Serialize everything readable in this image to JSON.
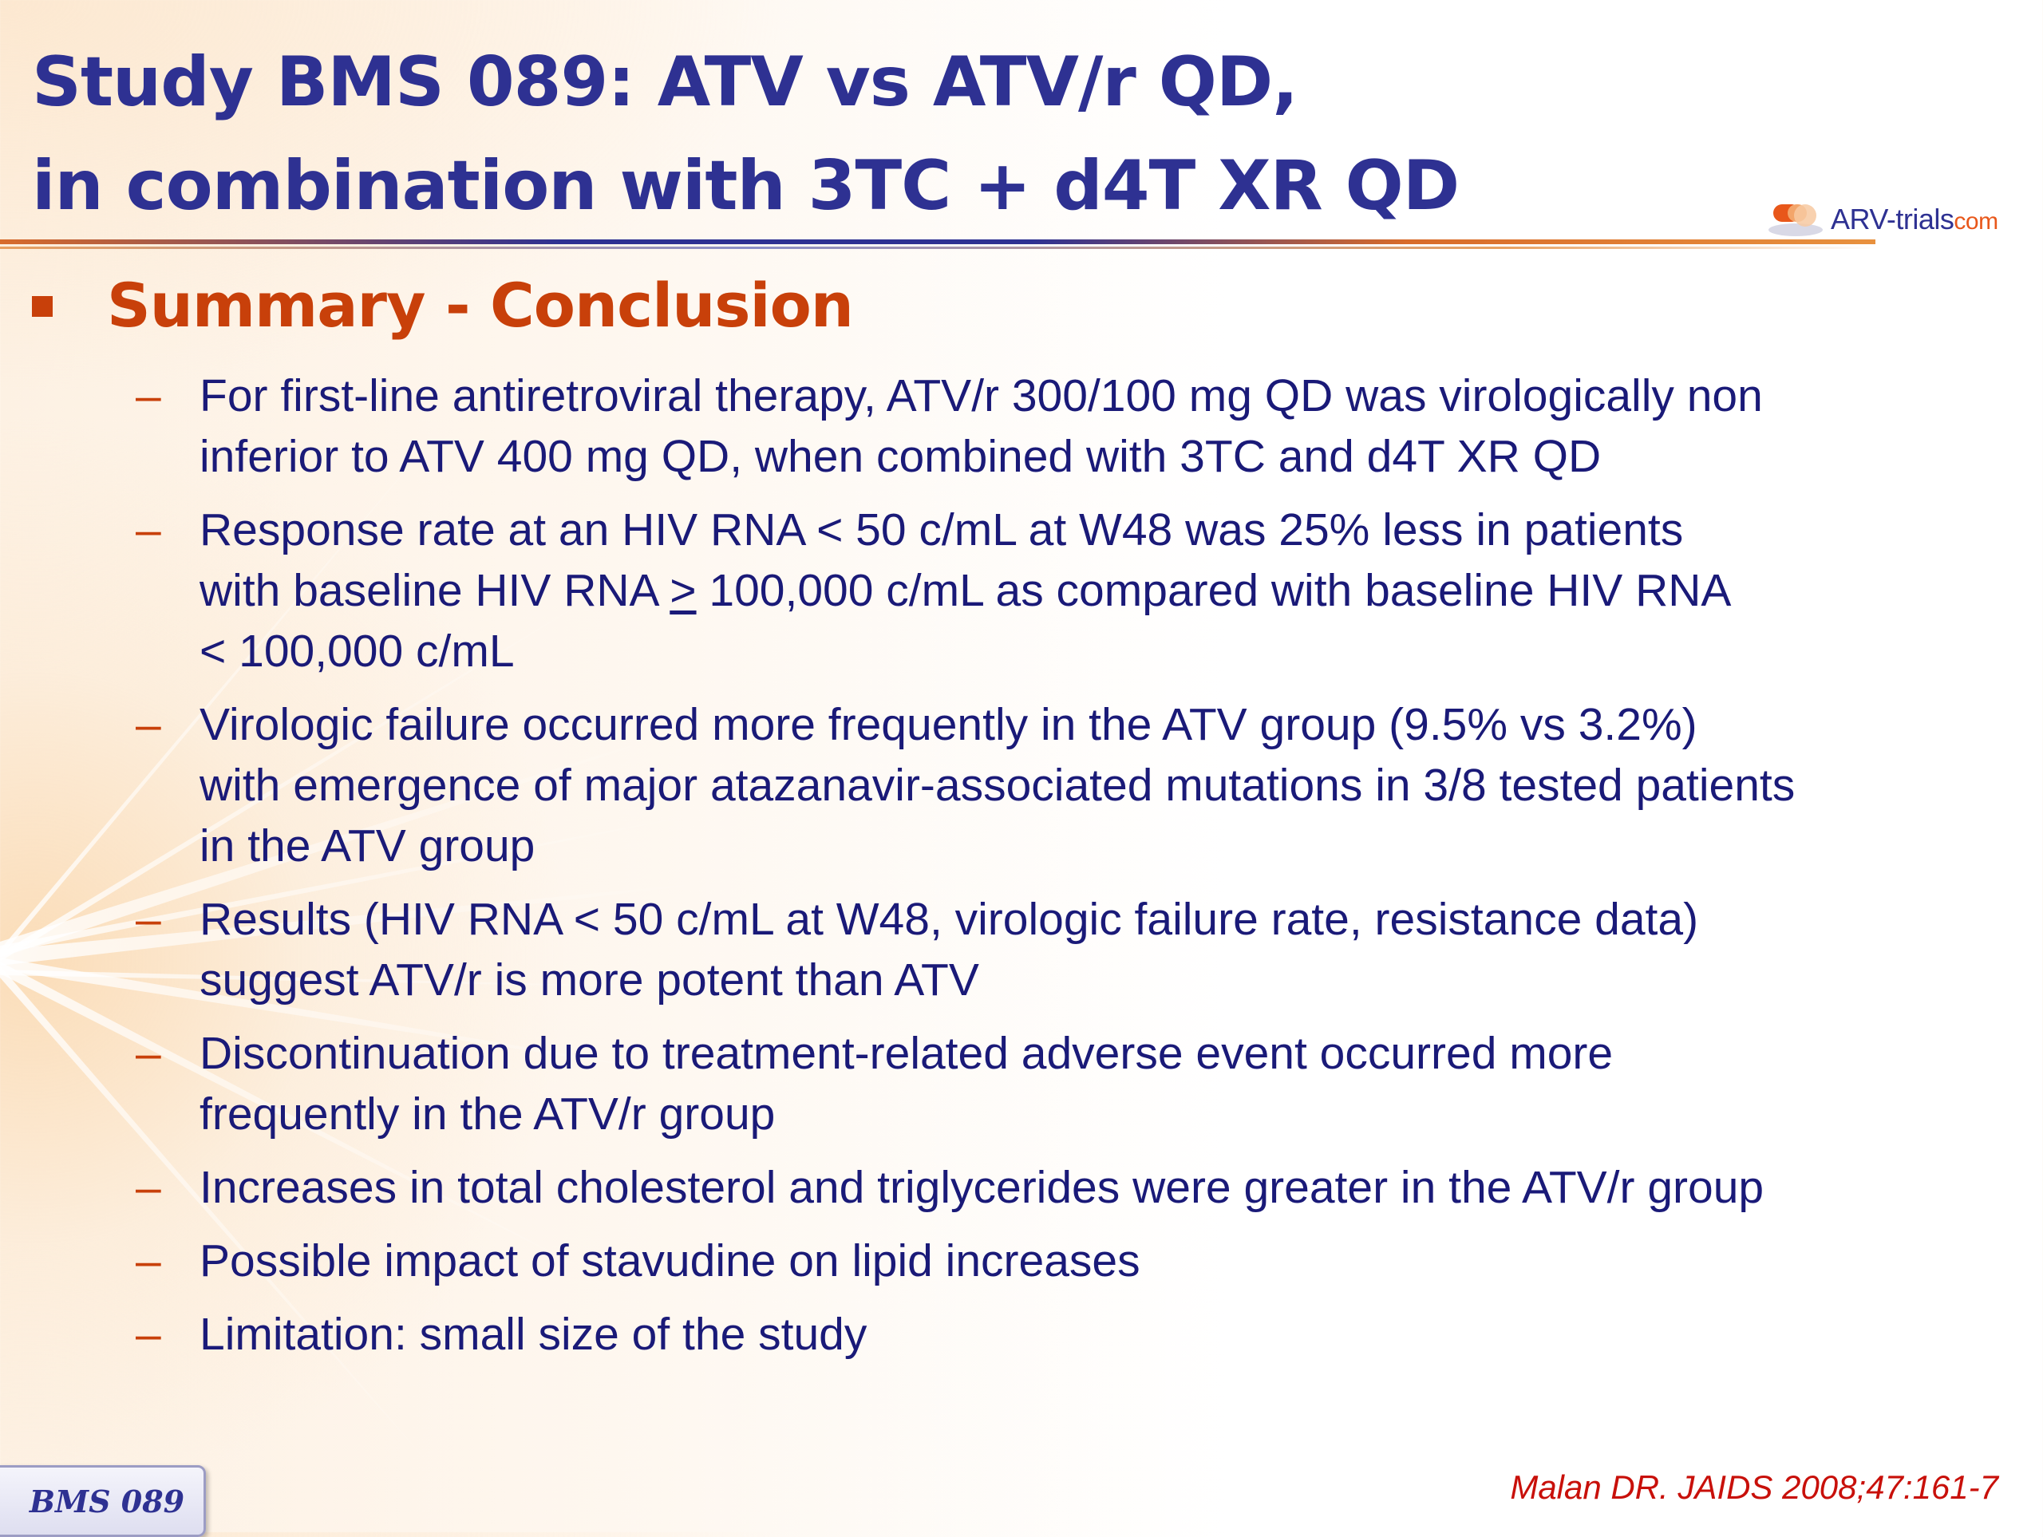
{
  "title": {
    "line1": "Study BMS 089: ATV vs ATV/r QD,",
    "line2": "in combination with 3TC + d4T XR QD"
  },
  "logo": {
    "icon": "pill-capsule-icon",
    "text_main": "ARV-trials",
    "text_suffix": "com"
  },
  "section": {
    "bullet_icon": "square-bullet-icon",
    "heading": "Summary - Conclusion"
  },
  "items": [
    {
      "dash": "–",
      "lines": [
        "For first-line antiretroviral therapy, ATV/r 300/100 mg QD was virologically non",
        "inferior to ATV 400 mg QD, when combined with 3TC and d4T XR QD"
      ]
    },
    {
      "dash": "–",
      "lines": [
        "Response rate at an HIV RNA < 50 c/mL at W48 was 25% less in patients",
        "with baseline HIV RNA ",
        "100,000 c/mL as compared with baseline HIV RNA",
        "< 100,000 c/mL"
      ],
      "symbol": ">"
    },
    {
      "dash": "–",
      "lines": [
        "Virologic failure occurred more frequently in the ATV group (9.5% vs 3.2%)",
        "with emergence of major atazanavir-associated mutations in 3/8 tested patients",
        "in the ATV group"
      ]
    },
    {
      "dash": "–",
      "lines": [
        "Results (HIV RNA < 50 c/mL at W48, virologic failure rate, resistance data)",
        "suggest ATV/r is more potent than ATV"
      ]
    },
    {
      "dash": "–",
      "lines": [
        "Discontinuation due to treatment-related adverse event occurred more",
        "frequently in the ATV/r group"
      ]
    },
    {
      "dash": "–",
      "lines": [
        "Increases in total cholesterol and triglycerides were greater in the ATV/r group"
      ]
    },
    {
      "dash": "–",
      "lines": [
        "Possible impact of stavudine on lipid increases"
      ]
    },
    {
      "dash": "–",
      "lines": [
        "Limitation: small size of the study"
      ]
    }
  ],
  "footer": {
    "badge": "BMS 089",
    "citation": "Malan DR. JAIDS 2008;47:161-7"
  },
  "colors": {
    "title": "#2e3192",
    "heading": "#c8400a",
    "body_text": "#1a1a78",
    "citation": "#c8100a"
  }
}
